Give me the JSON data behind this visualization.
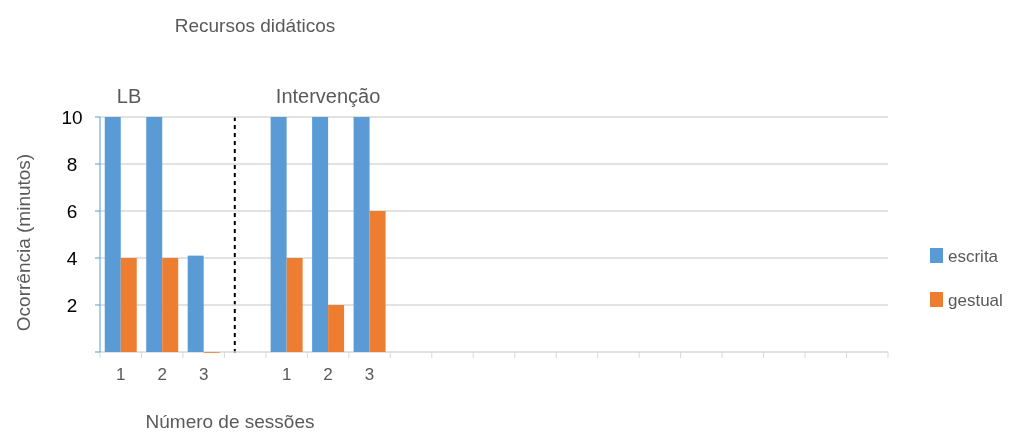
{
  "chart_data": {
    "type": "bar",
    "title": "Recursos didáticos",
    "xlabel": "Número de sessões",
    "ylabel": "Ocorrência (minutos)",
    "categories": [
      "1",
      "2",
      "3",
      null,
      "1",
      "2",
      "3",
      null,
      null,
      null,
      null,
      null,
      null,
      null,
      null,
      null,
      null,
      null,
      null
    ],
    "series": [
      {
        "name": "escrita",
        "color": "#5b9bd5",
        "values": [
          10,
          10,
          4.1,
          null,
          10,
          10,
          10,
          null,
          null,
          null,
          null,
          null,
          null,
          null,
          null,
          null,
          null,
          null,
          null
        ]
      },
      {
        "name": "gestual",
        "color": "#ed7d31",
        "values": [
          4,
          4,
          0,
          null,
          4,
          2,
          6,
          null,
          null,
          null,
          null,
          null,
          null,
          null,
          null,
          null,
          null,
          null,
          null
        ]
      }
    ],
    "ylim": [
      0,
      10
    ],
    "yticks": [
      {
        "value": 0,
        "label": null
      },
      2,
      4,
      6,
      8,
      10
    ],
    "grid": "y",
    "legend": "right",
    "annotations": [
      "LB",
      "Intervenção"
    ]
  }
}
